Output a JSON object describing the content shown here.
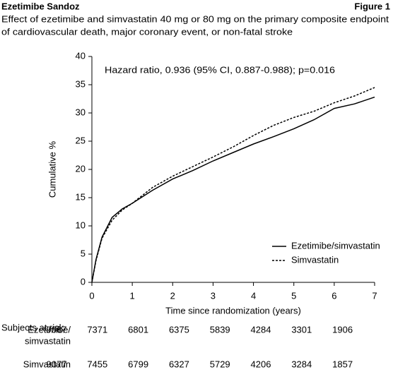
{
  "header": {
    "title": "Ezetimibe Sandoz",
    "figure": "Figure 1",
    "subtitle": [
      "Effect of ezetimibe and simvastatin 40 mg or 80 mg on the primary composite endpoint",
      "of cardiovascular death, major coronary event, or non-fatal stroke"
    ]
  },
  "chart_data": {
    "type": "line",
    "xlabel": "Time since randomization (years)",
    "ylabel": "Cumulative %",
    "annotation": "Hazard ratio, 0.936 (95% CI, 0.887-0.988); p=0.016",
    "x": [
      0,
      0.1,
      0.25,
      0.5,
      0.75,
      1,
      1.5,
      2,
      2.5,
      3,
      3.5,
      4,
      4.5,
      5,
      5.5,
      6,
      6.5,
      7
    ],
    "series": [
      {
        "name": "Ezetimibe/simvastatin",
        "color": "#000000",
        "linestyle": "solid",
        "values": [
          0,
          4,
          8,
          11.5,
          13,
          14,
          16.3,
          18.3,
          19.8,
          21.5,
          23,
          24.5,
          25.8,
          27.2,
          28.8,
          30.8,
          31.6,
          32.8
        ]
      },
      {
        "name": "Simvastatin",
        "color": "#000000",
        "linestyle": "dashed",
        "values": [
          0,
          3.8,
          7.8,
          11,
          12.8,
          14,
          16.8,
          18.8,
          20.5,
          22.2,
          24,
          26,
          27.8,
          29.2,
          30.3,
          31.8,
          33,
          34.5
        ]
      }
    ],
    "xlim": [
      0,
      7
    ],
    "xticks": [
      0,
      1,
      2,
      3,
      4,
      5,
      6,
      7
    ],
    "ylim": [
      0,
      40
    ],
    "yticks": [
      0,
      5,
      10,
      15,
      20,
      25,
      30,
      35,
      40
    ],
    "grid": false,
    "legend": "lower right"
  },
  "risk_table": {
    "title": "Subjects at risk",
    "rows": [
      {
        "label": [
          "Ezetimibe/",
          "simvastatin"
        ],
        "values": [
          9067,
          7371,
          6801,
          6375,
          5839,
          4284,
          3301,
          1906
        ]
      },
      {
        "label": [
          "Simvastatin"
        ],
        "values": [
          9077,
          7455,
          6799,
          6327,
          5729,
          4206,
          3284,
          1857
        ]
      }
    ]
  }
}
